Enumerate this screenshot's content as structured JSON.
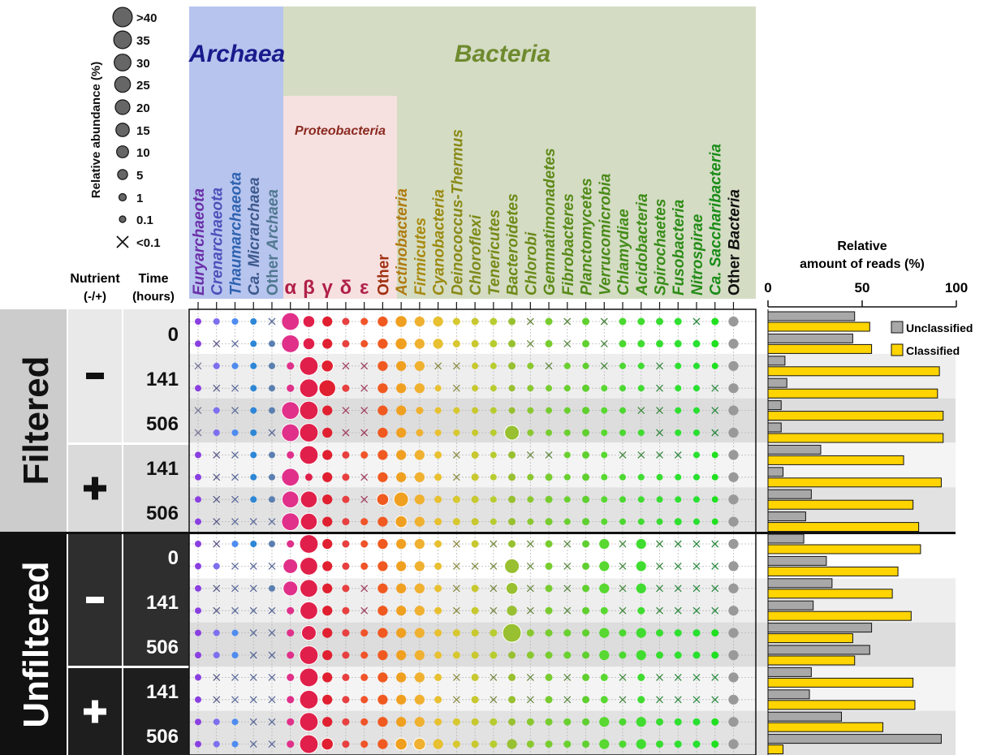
{
  "size_legend": {
    "title": "Relative abundance (%)",
    "labels": [
      ">40",
      "35",
      "30",
      "25",
      "20",
      "15",
      "10",
      "5",
      "1",
      "0.1",
      "<0.1"
    ],
    "values": [
      45,
      35,
      30,
      25,
      20,
      15,
      10,
      5,
      1,
      0.1,
      0
    ]
  },
  "domains": [
    {
      "label": "Archaea",
      "color": "#1a1a8c",
      "bg": "#b7c4ee"
    },
    {
      "label": "Bacteria",
      "color": "#6e8a2e",
      "bg": "#d4dcc4"
    }
  ],
  "proteobacteria_label": "Proteobacteria",
  "headers": {
    "nutrient": "Nutrient",
    "nutrient_sub": "(-/+)",
    "time": "Time",
    "time_sub": "(hours)"
  },
  "row_groups": [
    {
      "label": "Filtered",
      "bg": "#cccccc",
      "text": "#111111"
    },
    {
      "label": "Unfiltered",
      "bg": "#111111",
      "text": "#ffffff"
    }
  ],
  "nutrients": [
    {
      "label": "-",
      "bg": "#e9e9e9",
      "text": "#111111"
    },
    {
      "label": "+",
      "bg": "#dadada",
      "text": "#111111"
    },
    {
      "label": "-",
      "bg": "#2e2e2e",
      "text": "#ffffff"
    },
    {
      "label": "+",
      "bg": "#1e1e1e",
      "text": "#ffffff"
    }
  ],
  "time_labels": [
    "0",
    "141",
    "506",
    "141",
    "506",
    "0",
    "141",
    "506",
    "141",
    "506"
  ],
  "bar_axis": {
    "title_line1": "Relative",
    "title_line2": "amount of reads (%)",
    "ticks": [
      0,
      50,
      100
    ]
  },
  "bar_legend": [
    {
      "label": "Unclassified",
      "color": "#a8a8a8"
    },
    {
      "label": "Classified",
      "color": "#ffd400"
    }
  ],
  "chart_data": {
    "type": "bubble-matrix",
    "taxa": [
      {
        "label": "Euryarchaeota",
        "italic": true,
        "color": "#6a2fa8"
      },
      {
        "label": "Crenarchaeota",
        "italic": true,
        "color": "#5050bb"
      },
      {
        "label": "Thaumarchaeota",
        "italic": true,
        "color": "#2e62b0"
      },
      {
        "label": "Ca. Micrarchaea",
        "italic": true,
        "color": "#3e5a8e"
      },
      {
        "label": "Other Archaea",
        "italic": false,
        "italic_word": "Archaea",
        "color": "#507890"
      },
      {
        "label": "α",
        "greek": true,
        "color": "#b0204a"
      },
      {
        "label": "β",
        "greek": true,
        "color": "#b0204a"
      },
      {
        "label": "γ",
        "greek": true,
        "color": "#b0204a"
      },
      {
        "label": "δ",
        "greek": true,
        "color": "#b0204a"
      },
      {
        "label": "ε",
        "greek": true,
        "color": "#b0204a"
      },
      {
        "label": "Other",
        "italic": false,
        "color": "#a03010"
      },
      {
        "label": "Actinobacteria",
        "italic": true,
        "color": "#b07a10"
      },
      {
        "label": "Firmicutes",
        "italic": true,
        "color": "#a88a10"
      },
      {
        "label": "Cyanobacteria",
        "italic": true,
        "color": "#9a8a10"
      },
      {
        "label": "Deinococcus-Thermus",
        "italic": true,
        "color": "#8a8a18"
      },
      {
        "label": "Chloroflexi",
        "italic": true,
        "color": "#7e8a18"
      },
      {
        "label": "Tenericutes",
        "italic": true,
        "color": "#788a18"
      },
      {
        "label": "Bacteroidetes",
        "italic": true,
        "color": "#6e8a18"
      },
      {
        "label": "Chlorobi",
        "italic": true,
        "color": "#6a8a18"
      },
      {
        "label": "Gemmatimonadetes",
        "italic": true,
        "color": "#5e8a18"
      },
      {
        "label": "Fibrobacteres",
        "italic": true,
        "color": "#588a18"
      },
      {
        "label": "Planctomycetes",
        "italic": true,
        "color": "#508a18"
      },
      {
        "label": "Verrucomicrobia",
        "italic": true,
        "color": "#4a8a18"
      },
      {
        "label": "Chlamydiae",
        "italic": true,
        "color": "#448c18"
      },
      {
        "label": "Acidobacteria",
        "italic": true,
        "color": "#3e8c18"
      },
      {
        "label": "Spirochaetes",
        "italic": true,
        "color": "#388c18"
      },
      {
        "label": "Fusobacteria",
        "italic": true,
        "color": "#2e8c18"
      },
      {
        "label": "Nitrospirae",
        "italic": true,
        "color": "#248c18"
      },
      {
        "label": "Ca. Saccharibacteria",
        "italic": true,
        "color": "#1a8c18"
      },
      {
        "label": "Other Bacteria",
        "italic": false,
        "italic_word": "Bacteria",
        "color": "#111111"
      }
    ],
    "dot_colors": [
      "#8a3fe0",
      "#7d6ff0",
      "#4f8cf0",
      "#2d86d6",
      "#5a7fb0",
      "#e0308a",
      "#e0204a",
      "#e02030",
      "#e84040",
      "#f0542a",
      "#f05a20",
      "#f0a020",
      "#f0b030",
      "#e8c030",
      "#d8c830",
      "#c8c830",
      "#b8cc30",
      "#98c030",
      "#8ac830",
      "#78cc30",
      "#6ad030",
      "#60d030",
      "#58d830",
      "#4cd830",
      "#40dc30",
      "#38dc30",
      "#30e030",
      "#28e030",
      "#20e020",
      "#999999"
    ],
    "x_colors": [
      "#7a7a9a",
      "#5a5a8a",
      "#5a6a9a",
      "#5a6a9a",
      "#5a6a9a",
      "#a04060",
      "#a04060",
      "#a04060",
      "#a04060",
      "#a04060",
      "#a05030",
      "#9a8040",
      "#9a8a40",
      "#8a8a40",
      "#8a8a40",
      "#808a40",
      "#788a40",
      "#708a40",
      "#6a8a40",
      "#608a40",
      "#5a8a40",
      "#508a40",
      "#4a8a40",
      "#448a40",
      "#3e8a40",
      "#388a40",
      "#308a40",
      "#2a8a40",
      "#2a8a40",
      "#555555"
    ],
    "rows": [
      [
        0.1,
        0.1,
        0.05,
        0.05,
        0,
        35,
        10,
        5,
        1,
        1,
        5,
        10,
        5,
        5,
        1,
        1,
        1,
        1,
        0,
        1,
        0,
        1,
        0,
        1,
        1,
        1,
        1,
        0,
        1,
        5
      ],
      [
        0.1,
        0,
        0,
        0.05,
        0.05,
        35,
        10,
        5,
        1,
        1,
        5,
        10,
        5,
        5,
        1,
        1,
        1,
        1,
        0,
        1,
        0,
        1,
        0,
        1,
        1,
        1,
        1,
        1,
        1,
        5
      ],
      [
        0,
        0.05,
        0.05,
        0.05,
        0.05,
        1,
        40,
        10,
        0,
        0,
        5,
        5,
        5,
        0,
        0,
        0.1,
        0.1,
        1,
        0.1,
        0,
        0.1,
        0.1,
        0,
        0.1,
        0.1,
        0,
        0.1,
        0.1,
        0.1,
        5
      ],
      [
        0.1,
        0,
        0,
        0.05,
        0.05,
        1,
        40,
        30,
        1,
        0,
        5,
        5,
        5,
        0.1,
        0,
        0.1,
        0.1,
        0.1,
        0.1,
        0.1,
        0.1,
        1,
        0.1,
        0.1,
        0.1,
        0,
        0.1,
        0.1,
        0,
        5
      ],
      [
        0,
        0.05,
        0,
        0.05,
        0.05,
        35,
        40,
        5,
        0,
        0,
        5,
        5,
        1,
        0.1,
        0.1,
        0.1,
        0.1,
        0.1,
        0.1,
        0.1,
        0.1,
        1,
        0.1,
        0.1,
        0,
        0,
        0.1,
        0.1,
        0,
        5
      ],
      [
        0,
        0.05,
        0.05,
        0.05,
        0,
        35,
        40,
        5,
        0,
        0,
        5,
        5,
        1,
        0.1,
        0.1,
        0.1,
        0.1,
        20,
        0.1,
        0.1,
        0.1,
        1,
        0.1,
        0.1,
        0.1,
        0,
        0.1,
        0.1,
        0,
        5
      ],
      [
        0.1,
        0,
        0,
        0.05,
        0.05,
        1,
        40,
        5,
        1,
        1,
        5,
        5,
        5,
        1,
        0,
        1,
        0.1,
        1,
        0,
        0,
        0.1,
        1,
        0.1,
        0,
        0,
        0,
        0,
        0.1,
        0.1,
        5
      ],
      [
        0.1,
        0,
        0,
        0.05,
        0.05,
        35,
        1,
        5,
        1,
        0,
        5,
        5,
        5,
        1,
        0,
        1,
        0.1,
        1,
        0.1,
        1,
        0.1,
        1,
        0.1,
        0.1,
        0.1,
        0.1,
        0.1,
        0.1,
        0.1,
        5
      ],
      [
        0.1,
        0,
        0,
        0.05,
        0.05,
        30,
        30,
        5,
        1,
        0,
        10,
        20,
        5,
        1,
        1,
        1,
        0.1,
        1,
        0.1,
        1,
        0.1,
        1,
        0.1,
        0.1,
        0.1,
        0.1,
        0.1,
        0.1,
        0.1,
        5
      ],
      [
        0.1,
        0,
        0,
        0,
        0,
        35,
        30,
        5,
        1,
        1,
        5,
        10,
        5,
        1,
        1,
        1,
        0.1,
        1,
        0.1,
        1,
        0.1,
        1,
        0.1,
        0.1,
        0.1,
        0.1,
        1,
        0.1,
        0.1,
        5
      ],
      [
        0.1,
        0,
        0.05,
        0.05,
        0.05,
        1,
        40,
        5,
        1,
        1,
        5,
        5,
        5,
        1,
        0,
        1,
        0,
        1,
        0,
        1,
        0,
        1,
        5,
        0,
        5,
        0,
        0,
        0,
        0,
        5
      ],
      [
        0.1,
        0.05,
        0,
        0,
        0,
        20,
        35,
        5,
        1,
        1,
        5,
        5,
        5,
        1,
        0,
        0,
        0,
        20,
        0,
        1,
        0,
        1,
        5,
        0,
        5,
        0,
        0,
        0,
        0,
        5
      ],
      [
        0.1,
        0,
        0,
        0,
        0.05,
        20,
        35,
        5,
        1,
        0,
        5,
        5,
        5,
        1,
        0,
        1,
        0,
        10,
        0,
        1,
        0,
        1,
        5,
        0,
        5,
        0,
        0,
        0,
        0,
        5
      ],
      [
        0.1,
        0,
        0,
        0,
        0,
        1,
        35,
        5,
        1,
        0,
        5,
        5,
        5,
        1,
        0,
        1,
        0,
        5,
        0,
        1,
        0,
        1,
        1,
        0,
        1,
        0,
        0,
        0,
        0,
        5
      ],
      [
        0.1,
        0.1,
        0.1,
        0,
        0,
        1,
        20,
        5,
        1,
        1,
        5,
        5,
        5,
        1,
        1,
        1,
        1,
        40,
        1,
        1,
        1,
        1,
        5,
        1,
        5,
        1,
        1,
        1,
        1,
        5
      ],
      [
        0.1,
        0.1,
        0.1,
        0,
        0,
        1,
        40,
        5,
        1,
        1,
        5,
        5,
        5,
        1,
        1,
        1,
        1,
        1,
        1,
        1,
        1,
        1,
        5,
        1,
        5,
        1,
        1,
        1,
        1,
        5
      ],
      [
        0.1,
        0,
        0,
        0,
        0,
        1,
        40,
        5,
        1,
        1,
        5,
        5,
        5,
        1,
        0,
        1,
        0,
        1,
        0,
        1,
        0,
        1,
        1,
        0,
        1,
        0,
        0,
        0,
        0,
        5
      ],
      [
        0.1,
        0,
        0,
        0,
        0,
        1,
        40,
        5,
        1,
        1,
        5,
        5,
        5,
        1,
        0,
        1,
        0,
        1,
        0,
        1,
        0,
        1,
        1,
        0,
        1,
        0,
        0,
        0,
        0,
        5
      ],
      [
        0.1,
        0.1,
        0.1,
        0,
        0,
        1,
        40,
        5,
        1,
        1,
        5,
        5,
        5,
        1,
        1,
        1,
        1,
        1,
        1,
        1,
        1,
        1,
        5,
        1,
        5,
        1,
        1,
        1,
        1,
        5
      ],
      [
        0.1,
        0.1,
        0.1,
        0,
        0,
        1,
        40,
        10,
        1,
        1,
        5,
        10,
        10,
        5,
        1,
        1,
        1,
        5,
        1,
        1,
        1,
        1,
        5,
        1,
        5,
        1,
        1,
        1,
        1,
        5
      ]
    ],
    "bars": [
      {
        "unclassified": 46,
        "classified": 54
      },
      {
        "unclassified": 45,
        "classified": 55
      },
      {
        "unclassified": 9,
        "classified": 91
      },
      {
        "unclassified": 10,
        "classified": 90
      },
      {
        "unclassified": 7,
        "classified": 93
      },
      {
        "unclassified": 7,
        "classified": 93
      },
      {
        "unclassified": 28,
        "classified": 72
      },
      {
        "unclassified": 8,
        "classified": 92
      },
      {
        "unclassified": 23,
        "classified": 77
      },
      {
        "unclassified": 20,
        "classified": 80
      },
      {
        "unclassified": 19,
        "classified": 81
      },
      {
        "unclassified": 31,
        "classified": 69
      },
      {
        "unclassified": 34,
        "classified": 66
      },
      {
        "unclassified": 24,
        "classified": 76
      },
      {
        "unclassified": 55,
        "classified": 45
      },
      {
        "unclassified": 54,
        "classified": 46
      },
      {
        "unclassified": 23,
        "classified": 77
      },
      {
        "unclassified": 22,
        "classified": 78
      },
      {
        "unclassified": 39,
        "classified": 61
      },
      {
        "unclassified": 92,
        "classified": 8
      }
    ]
  }
}
